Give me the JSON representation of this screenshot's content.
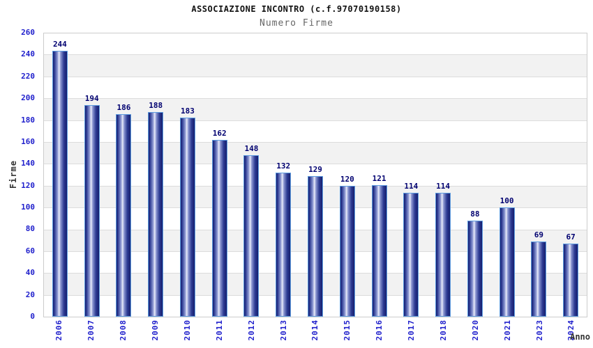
{
  "header": {
    "title": "ASSOCIAZIONE INCONTRO (c.f.97070190158)",
    "subtitle": "Numero Firme"
  },
  "chart_data": {
    "type": "bar",
    "title": "ASSOCIAZIONE INCONTRO (c.f.97070190158)",
    "subtitle": "Numero Firme",
    "xlabel": "Anno",
    "ylabel": "Firme",
    "categories": [
      "2006",
      "2007",
      "2008",
      "2009",
      "2010",
      "2011",
      "2012",
      "2013",
      "2014",
      "2015",
      "2016",
      "2017",
      "2018",
      "2020",
      "2021",
      "2023",
      "2024"
    ],
    "values": [
      244,
      194,
      186,
      188,
      183,
      162,
      148,
      132,
      129,
      120,
      121,
      114,
      114,
      88,
      100,
      69,
      67
    ],
    "ylim": [
      0,
      260
    ],
    "ytick_step": 20,
    "grid": "horizontal gridlines with alternating white/gray bands",
    "legend": "none",
    "x_tick_rotation": "vertical",
    "colors": {
      "title": "#111111",
      "subtitle": "#666666",
      "tick_labels": "#2020cc",
      "value_labels": "#000070",
      "axis_titles": "#333333",
      "grid_line": "#dcdcdc",
      "plot_border": "#cccccc",
      "band_gray": "#f2f2f2",
      "band_white": "#ffffff",
      "bar_dark": "#161f6e",
      "bar_mid": "#2c3a92",
      "bar_light": "#8d98d2",
      "bar_highlight": "#e9ecfa",
      "bar_border": "#5d9ce0"
    }
  }
}
